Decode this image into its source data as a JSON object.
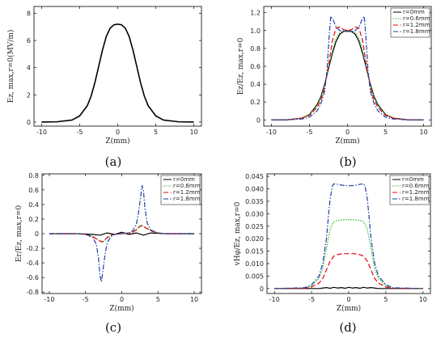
{
  "figure": {
    "legend_labels": [
      "r=0mm",
      "r=0.6mm",
      "r=1.2mm",
      "r=1.8mm"
    ],
    "series_colors": [
      "#000000",
      "#2eb82e",
      "#e8000b",
      "#1f3fa8"
    ]
  },
  "chart_data": [
    {
      "type": "line",
      "caption": "(a)",
      "xlabel": "Z(mm)",
      "ylabel": "Ez, max,r=0(MV/m)",
      "xlim": [
        -11,
        11
      ],
      "ylim": [
        -0.3,
        8.5
      ],
      "xticks": [
        -10,
        -5,
        0,
        5,
        10
      ],
      "yticks": [
        0,
        2,
        4,
        6,
        8
      ],
      "xtick_labels": [
        "-10",
        "-5",
        "0",
        "5",
        "10"
      ],
      "ytick_labels": [
        "0",
        "2",
        "4",
        "6",
        "8"
      ],
      "legend": false,
      "series": [
        {
          "color": "#000000",
          "dash": "",
          "x": [
            -10,
            -8,
            -6,
            -5,
            -4,
            -3.5,
            -3,
            -2.5,
            -2,
            -1.5,
            -1,
            -0.5,
            0,
            0.5,
            1,
            1.5,
            2,
            2.5,
            3,
            3.5,
            4,
            5,
            6,
            8,
            10
          ],
          "y": [
            0,
            0.02,
            0.15,
            0.45,
            1.2,
            1.9,
            2.9,
            4.1,
            5.3,
            6.3,
            6.9,
            7.15,
            7.2,
            7.15,
            6.9,
            6.3,
            5.3,
            4.1,
            2.9,
            1.9,
            1.2,
            0.45,
            0.15,
            0.02,
            0
          ]
        }
      ]
    },
    {
      "type": "line",
      "caption": "(b)",
      "xlabel": "Z(mm)",
      "ylabel": "Ez/Ez, max,r=0",
      "xlim": [
        -11,
        11
      ],
      "ylim": [
        -0.07,
        1.27
      ],
      "xticks": [
        -10,
        -5,
        0,
        5,
        10
      ],
      "yticks": [
        0,
        0.2,
        0.4,
        0.6,
        0.8,
        1.0,
        1.2
      ],
      "xtick_labels": [
        "-10",
        "-5",
        "0",
        "5",
        "10"
      ],
      "ytick_labels": [
        "0",
        "0.2",
        "0.4",
        "0.6",
        "0.8",
        "1.0",
        "1.2"
      ],
      "legend": true,
      "series": [
        {
          "name": "r=0mm",
          "color": "#000000",
          "dash": "",
          "x": [
            -10,
            -8,
            -6,
            -5,
            -4,
            -3.5,
            -3,
            -2.5,
            -2,
            -1.5,
            -1,
            -0.5,
            0,
            0.5,
            1,
            1.5,
            2,
            2.5,
            3,
            3.5,
            4,
            5,
            6,
            8,
            10
          ],
          "y": [
            0,
            0,
            0.02,
            0.06,
            0.17,
            0.26,
            0.4,
            0.57,
            0.74,
            0.88,
            0.96,
            0.99,
            1.0,
            0.99,
            0.96,
            0.88,
            0.74,
            0.57,
            0.4,
            0.26,
            0.17,
            0.06,
            0.02,
            0,
            0
          ]
        },
        {
          "name": "r=0.6mm",
          "color": "#2eb82e",
          "dash": "1.5,1.5",
          "x": [
            -10,
            -8,
            -6,
            -5,
            -4,
            -3.5,
            -3,
            -2.5,
            -2,
            -1.5,
            -1,
            -0.5,
            0,
            0.5,
            1,
            1.5,
            2,
            2.5,
            3,
            3.5,
            4,
            5,
            6,
            8,
            10
          ],
          "y": [
            0,
            0,
            0.02,
            0.06,
            0.16,
            0.25,
            0.39,
            0.58,
            0.77,
            0.91,
            0.98,
            1.0,
            1.0,
            1.0,
            0.98,
            0.91,
            0.77,
            0.58,
            0.39,
            0.25,
            0.16,
            0.06,
            0.02,
            0,
            0
          ]
        },
        {
          "name": "r=1.2mm",
          "color": "#e8000b",
          "dash": "6,3",
          "x": [
            -10,
            -8,
            -6,
            -5,
            -4,
            -3.5,
            -3,
            -2.5,
            -2,
            -1.5,
            -1,
            -0.5,
            0,
            0.5,
            1,
            1.5,
            2,
            2.5,
            3,
            3.5,
            4,
            5,
            6,
            8,
            10
          ],
          "y": [
            0,
            0,
            0.02,
            0.05,
            0.14,
            0.22,
            0.36,
            0.6,
            0.88,
            1.03,
            1.04,
            1.01,
            1.0,
            1.01,
            1.04,
            1.03,
            0.88,
            0.6,
            0.36,
            0.22,
            0.14,
            0.05,
            0.02,
            0,
            0
          ]
        },
        {
          "name": "r=1.8mm",
          "color": "#1f3fa8",
          "dash": "6,2,1.5,2",
          "x": [
            -10,
            -8,
            -6,
            -5,
            -4,
            -3.5,
            -3,
            -2.7,
            -2.4,
            -2.2,
            -1.9,
            -1.5,
            -1,
            -0.5,
            0,
            0.5,
            1,
            1.5,
            1.9,
            2.2,
            2.4,
            2.7,
            3,
            3.5,
            4,
            5,
            6,
            8,
            10
          ],
          "y": [
            0,
            0,
            0.01,
            0.03,
            0.1,
            0.18,
            0.32,
            0.55,
            0.95,
            1.16,
            1.12,
            1.04,
            1.0,
            0.99,
            0.99,
            0.99,
            1.0,
            1.04,
            1.12,
            1.16,
            0.95,
            0.55,
            0.32,
            0.18,
            0.1,
            0.03,
            0.01,
            0,
            0
          ]
        }
      ]
    },
    {
      "type": "line",
      "caption": "(c)",
      "xlabel": "Z(mm)",
      "ylabel": "Er/Ez, max,r=0",
      "xlim": [
        -11,
        11
      ],
      "ylim": [
        -0.82,
        0.82
      ],
      "xticks": [
        -10,
        -5,
        0,
        5,
        10
      ],
      "yticks": [
        -0.8,
        -0.6,
        -0.4,
        -0.2,
        0,
        0.2,
        0.4,
        0.6,
        0.8
      ],
      "xtick_labels": [
        "-10",
        "-5",
        "0",
        "5",
        "10"
      ],
      "ytick_labels": [
        "-0.8",
        "-0.6",
        "-0.4",
        "-0.2",
        "0",
        "0.2",
        "0.4",
        "0.6",
        "0.8"
      ],
      "legend": true,
      "series": [
        {
          "name": "r=0mm",
          "color": "#000000",
          "dash": "",
          "x": [
            -10,
            -6,
            -4,
            -3,
            -2,
            -1,
            0,
            1,
            2,
            3,
            4,
            6,
            10
          ],
          "y": [
            0,
            0,
            -0.01,
            -0.02,
            0.01,
            -0.01,
            0.02,
            -0.01,
            0.01,
            -0.02,
            0.01,
            0,
            0
          ]
        },
        {
          "name": "r=0.6mm",
          "color": "#2eb82e",
          "dash": "1.5,1.5",
          "x": [
            -10,
            -6,
            -5,
            -4,
            -3.5,
            -3,
            -2.7,
            -2.4,
            -2,
            -1.5,
            -1,
            0,
            1,
            1.5,
            2,
            2.4,
            2.7,
            3,
            3.5,
            4,
            5,
            6,
            10
          ],
          "y": [
            0,
            0,
            -0.01,
            -0.04,
            -0.07,
            -0.1,
            -0.12,
            -0.1,
            -0.06,
            -0.03,
            -0.01,
            0,
            0.01,
            0.03,
            0.06,
            0.1,
            0.12,
            0.1,
            0.07,
            0.04,
            0.01,
            0,
            0
          ]
        },
        {
          "name": "r=1.2mm",
          "color": "#e8000b",
          "dash": "6,3",
          "x": [
            -10,
            -6,
            -5,
            -4,
            -3.5,
            -3,
            -2.7,
            -2.4,
            -2,
            -1.5,
            -1,
            0,
            1,
            1.5,
            2,
            2.4,
            2.7,
            3,
            3.5,
            4,
            5,
            6,
            10
          ],
          "y": [
            0,
            0,
            -0.01,
            -0.04,
            -0.07,
            -0.1,
            -0.11,
            -0.09,
            -0.05,
            -0.02,
            -0.01,
            0,
            0.01,
            0.02,
            0.05,
            0.09,
            0.11,
            0.1,
            0.07,
            0.04,
            0.01,
            0,
            0
          ]
        },
        {
          "name": "r=1.8mm",
          "color": "#1f3fa8",
          "dash": "6,2,1.5,2",
          "x": [
            -10,
            -6,
            -5,
            -4,
            -3.5,
            -3.2,
            -3,
            -2.8,
            -2.6,
            -2.3,
            -2,
            -1.5,
            -1,
            0,
            1,
            1.5,
            2,
            2.3,
            2.6,
            2.8,
            3,
            3.2,
            3.5,
            4,
            5,
            6,
            10
          ],
          "y": [
            0,
            0,
            -0.01,
            -0.05,
            -0.15,
            -0.35,
            -0.58,
            -0.66,
            -0.5,
            -0.28,
            -0.12,
            -0.04,
            -0.01,
            0,
            0.01,
            0.04,
            0.12,
            0.28,
            0.5,
            0.66,
            0.58,
            0.35,
            0.15,
            0.05,
            0.01,
            0,
            0
          ]
        }
      ]
    },
    {
      "type": "line",
      "caption": "(d)",
      "xlabel": "Z(mm)",
      "ylabel": "vHφ/Ez, max,r=0",
      "xlim": [
        -11,
        11
      ],
      "ylim": [
        -0.002,
        0.046
      ],
      "xticks": [
        -10,
        -5,
        0,
        5,
        10
      ],
      "yticks": [
        0,
        0.005,
        0.01,
        0.015,
        0.02,
        0.025,
        0.03,
        0.035,
        0.04,
        0.045
      ],
      "xtick_labels": [
        "-10",
        "-5",
        "0",
        "5",
        "10"
      ],
      "ytick_labels": [
        "0",
        "0.005",
        "0.010",
        "0.015",
        "0.020",
        "0.025",
        "0.030",
        "0.035",
        "0.040",
        "0.045"
      ],
      "legend": true,
      "series": [
        {
          "name": "r=0mm",
          "color": "#000000",
          "dash": "",
          "x": [
            -10,
            -4,
            -3.5,
            -3,
            -2.5,
            -2,
            -1.5,
            -1,
            -0.5,
            0,
            0.5,
            1,
            1.5,
            2,
            2.5,
            3,
            3.5,
            4,
            10
          ],
          "y": [
            0,
            0,
            0.0002,
            0.0004,
            0.0001,
            0.0005,
            0.0002,
            0.0004,
            0.0001,
            0.0005,
            0.0002,
            0.0004,
            0.0001,
            0.0005,
            0.0002,
            0.0004,
            0.0002,
            0,
            0
          ]
        },
        {
          "name": "r=0.6mm",
          "color": "#2eb82e",
          "dash": "1.5,1.5",
          "x": [
            -10,
            -6,
            -5,
            -4,
            -3.5,
            -3,
            -2.5,
            -2,
            -1.5,
            -1,
            -0.5,
            0,
            0.5,
            1,
            1.5,
            2,
            2.5,
            3,
            3.5,
            4,
            5,
            6,
            10
          ],
          "y": [
            0,
            0.0002,
            0.001,
            0.004,
            0.008,
            0.016,
            0.024,
            0.0268,
            0.0273,
            0.0275,
            0.0276,
            0.0276,
            0.0276,
            0.0275,
            0.0273,
            0.0268,
            0.024,
            0.016,
            0.008,
            0.004,
            0.001,
            0.0002,
            0
          ]
        },
        {
          "name": "r=1.2mm",
          "color": "#e8000b",
          "dash": "6,3",
          "x": [
            -10,
            -6,
            -5,
            -4,
            -3.5,
            -3,
            -2.5,
            -2,
            -1.5,
            -1,
            -0.5,
            0,
            0.5,
            1,
            1.5,
            2,
            2.5,
            3,
            3.5,
            4,
            5,
            6,
            10
          ],
          "y": [
            0,
            0.0001,
            0.0006,
            0.0022,
            0.004,
            0.0075,
            0.011,
            0.013,
            0.0136,
            0.0139,
            0.014,
            0.014,
            0.014,
            0.0139,
            0.0136,
            0.013,
            0.011,
            0.0075,
            0.004,
            0.0022,
            0.0006,
            0.0001,
            0
          ]
        },
        {
          "name": "r=1.8mm",
          "color": "#1f3fa8",
          "dash": "6,2,1.5,2",
          "x": [
            -10,
            -6,
            -5,
            -4,
            -3.5,
            -3,
            -2.7,
            -2.5,
            -2.2,
            -2,
            -1.5,
            -1,
            -0.5,
            0,
            0.5,
            1,
            1.5,
            2,
            2.2,
            2.5,
            2.7,
            3,
            3.5,
            4,
            5,
            6,
            10
          ],
          "y": [
            0,
            0.0003,
            0.0015,
            0.005,
            0.01,
            0.02,
            0.03,
            0.036,
            0.041,
            0.042,
            0.0418,
            0.0415,
            0.0413,
            0.0412,
            0.0413,
            0.0415,
            0.0418,
            0.042,
            0.041,
            0.036,
            0.03,
            0.02,
            0.01,
            0.005,
            0.0015,
            0.0003,
            0
          ]
        }
      ]
    }
  ]
}
